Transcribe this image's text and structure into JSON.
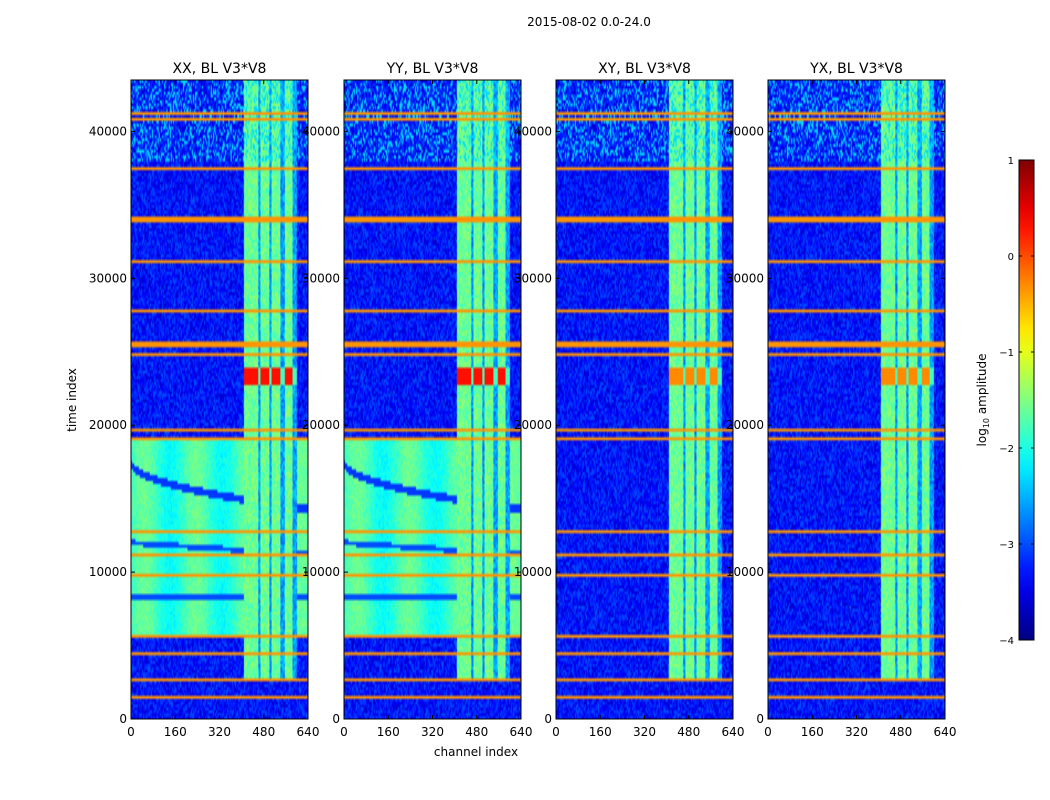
{
  "chart_data": {
    "type": "heatmap",
    "suptitle": "2015-08-02 0.0-24.0",
    "xlabel": "channel index",
    "ylabel": "time index",
    "xlim": [
      0,
      640
    ],
    "ylim": [
      0,
      43500
    ],
    "xticks": [
      0,
      160,
      320,
      480,
      640
    ],
    "yticks": [
      0,
      10000,
      20000,
      30000,
      40000
    ],
    "panels": [
      {
        "title": "XX, BL V3*V8",
        "pol": "XX"
      },
      {
        "title": "YY, BL V3*V8",
        "pol": "YY"
      },
      {
        "title": "XY, BL V3*V8",
        "pol": "XY"
      },
      {
        "title": "YX, BL V3*V8",
        "pol": "YX"
      }
    ],
    "colorbar": {
      "label_prefix": "log",
      "label_sub": "10",
      "label_suffix": " amplitude",
      "vmin": -4,
      "vmax": 1,
      "ticks": [
        1,
        0,
        -1,
        -2,
        -3,
        -4
      ],
      "tick_labels": [
        "1",
        "0",
        "−1",
        "−2",
        "−3",
        "−4"
      ],
      "colormap": "jet"
    },
    "features": {
      "rfi_channel_band": [
        410,
        600
      ],
      "rfi_vertical_stripes": [
        [
          410,
          460
        ],
        [
          470,
          500
        ],
        [
          510,
          540
        ],
        [
          555,
          585
        ]
      ],
      "broadband_bright_time_range_parallel": [
        5500,
        19000
      ],
      "orange_rfi_rows": [
        1500,
        2600,
        4500,
        5600,
        9800,
        11200,
        12800,
        19000,
        19600,
        24800,
        25500,
        27800,
        31200,
        34000,
        37500,
        40800,
        41200
      ],
      "strong_burst_time": [
        22800,
        24000
      ]
    }
  }
}
